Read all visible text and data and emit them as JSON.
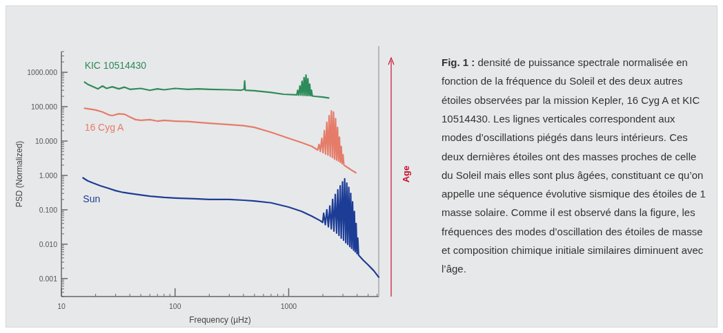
{
  "chart_data": {
    "type": "line",
    "xlabel": "Frequency (µHz)",
    "ylabel": "PSD (Normalized)",
    "log": "xy",
    "xlim": [
      10,
      6200
    ],
    "xticks": [
      10,
      100,
      1000
    ],
    "ylim": [
      0.0003,
      4000
    ],
    "yticks": [
      {
        "value": 0.001,
        "label": "0.001"
      },
      {
        "value": 0.01,
        "label": "0.010"
      },
      {
        "value": 0.1,
        "label": "0.100"
      },
      {
        "value": 1,
        "label": "1.000"
      },
      {
        "value": 10,
        "label": "10.000"
      },
      {
        "value": 100,
        "label": "100.000"
      },
      {
        "value": 1000,
        "label": "1000.000"
      }
    ],
    "series": [
      {
        "name": "KIC 10514430",
        "color": "#2e8b5a",
        "x": [
          16,
          17,
          19,
          21,
          23,
          25,
          28,
          32,
          36,
          40,
          50,
          60,
          70,
          80,
          100,
          130,
          160,
          200,
          300,
          380,
          405,
          410,
          415,
          500,
          700,
          900,
          1180,
          1200,
          1228,
          1255,
          1283,
          1310,
          1338,
          1365,
          1393,
          1420,
          1448,
          1475,
          1503,
          1530,
          1558,
          1585,
          1613,
          1700,
          2000,
          2250
        ],
        "values": [
          520,
          450,
          380,
          330,
          400,
          340,
          380,
          330,
          370,
          320,
          340,
          300,
          330,
          310,
          340,
          320,
          330,
          320,
          310,
          300,
          320,
          560,
          300,
          290,
          260,
          230,
          220,
          300,
          215,
          400,
          215,
          550,
          212,
          700,
          212,
          830,
          210,
          650,
          210,
          450,
          208,
          300,
          205,
          200,
          190,
          180
        ]
      },
      {
        "name": "16 Cyg A",
        "color": "#e57c6a",
        "x": [
          16,
          18,
          20,
          23,
          26,
          28,
          32,
          36,
          40,
          45,
          50,
          60,
          70,
          80,
          100,
          130,
          160,
          200,
          300,
          400,
          500,
          700,
          1000,
          1300,
          1600,
          1800,
          1850,
          1900,
          1955,
          2005,
          2060,
          2110,
          2165,
          2215,
          2270,
          2320,
          2375,
          2425,
          2480,
          2530,
          2585,
          2635,
          2690,
          2740,
          2795,
          2845,
          2900,
          2950,
          3005,
          3060,
          3300,
          3600,
          3900
        ],
        "values": [
          90,
          85,
          80,
          70,
          58,
          55,
          62,
          60,
          50,
          42,
          40,
          42,
          38,
          40,
          38,
          37,
          35,
          33,
          30,
          28,
          25,
          18,
          12,
          9,
          7,
          5.5,
          8,
          5,
          12,
          4.6,
          20,
          4.2,
          35,
          3.9,
          55,
          3.6,
          76,
          3.3,
          70,
          3,
          45,
          2.8,
          25,
          2.6,
          13,
          2.4,
          7,
          2.2,
          4,
          2,
          1.7,
          1.4,
          1.2
        ]
      },
      {
        "name": "Sun",
        "color": "#1c3c96",
        "x": [
          15.5,
          17,
          19,
          22,
          26,
          30,
          35,
          40,
          50,
          60,
          80,
          100,
          150,
          200,
          300,
          400,
          500,
          700,
          1000,
          1300,
          1600,
          1900,
          1990,
          2030,
          2100,
          2165,
          2235,
          2300,
          2370,
          2435,
          2500,
          2570,
          2640,
          2705,
          2770,
          2840,
          2900,
          2975,
          3040,
          3110,
          3180,
          3245,
          3310,
          3380,
          3450,
          3515,
          3580,
          3650,
          3720,
          3785,
          3850,
          3920,
          3990,
          4055,
          4120,
          4500,
          5000,
          5600,
          6200
        ],
        "values": [
          0.85,
          0.7,
          0.6,
          0.5,
          0.42,
          0.36,
          0.32,
          0.3,
          0.27,
          0.25,
          0.23,
          0.22,
          0.21,
          0.2,
          0.2,
          0.19,
          0.18,
          0.16,
          0.12,
          0.09,
          0.065,
          0.048,
          0.043,
          0.08,
          0.037,
          0.1,
          0.032,
          0.13,
          0.028,
          0.2,
          0.024,
          0.28,
          0.021,
          0.38,
          0.018,
          0.5,
          0.015,
          0.65,
          0.013,
          0.8,
          0.011,
          0.6,
          0.0098,
          0.45,
          0.0085,
          0.3,
          0.0076,
          0.17,
          0.0067,
          0.09,
          0.006,
          0.04,
          0.0053,
          0.015,
          0.0048,
          0.0035,
          0.0025,
          0.0017,
          0.0011
        ]
      }
    ],
    "annotations": [
      "Age",
      "Fig. 1 :",
      "densité de puissance spectrale normalisée en fonction de la fréquence du Soleil et des deux autres étoiles observées par la mission Kepler, 16 Cyg A et KIC 10514430. Les lignes verticales correspondent aux modes d’oscillations piégés dans leurs intérieurs. Ces deux dernières étoiles ont des masses proches de celle du Soleil mais elles sont plus âgées, constituant ce qu’on appelle une séquence évolutive sismique des étoiles de 1 masse solaire. Comme il est observé dans la figure, les fréquences des modes d’oscillation des étoiles de masse et composition chimique initiale similaires diminuent avec l’âge."
    ]
  }
}
